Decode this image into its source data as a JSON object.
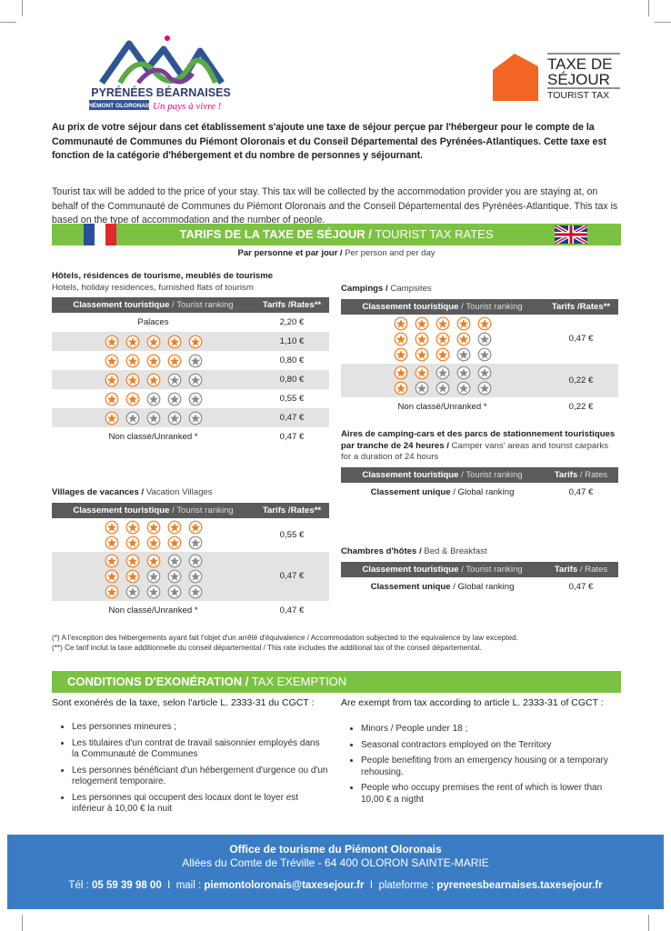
{
  "header": {
    "brand": "PYRÉNÉES BÉARNAISES",
    "brand_sub": "PIÉMONT OLORONAIS",
    "tagline": "Un pays à vivre !",
    "tax_logo_line1": "TAXE DE",
    "tax_logo_line2": "SÉJOUR",
    "tax_logo_line3": "TOURIST TAX"
  },
  "intro_fr": "Au prix de votre séjour dans cet établissement s'ajoute une taxe de séjour perçue par l'hébergeur pour le compte de la Communauté de Communes du Piémont Oloronais et du Conseil Départemental des Pyrénées-Atlantiques. Cette taxe est fonction de la catégorie d'hébergement et du nombre de personnes y séjournant.",
  "intro_en": "Tourist tax will be added to the price of your stay. This tax will be collected by the accommodation provider you are staying at, on behalf of the Communauté de Communes du Piémont Oloronais and the Conseil Départemental des Pyrénées-Atlantique. This tax is based on the type of accommodation and the number of people.",
  "rates": {
    "title_bold": "TARIFS DE LA TAXE DE SÉJOUR /",
    "title": " TOURIST TAX RATES",
    "subtitle_bold": "Par personne et par jour /",
    "subtitle": " Per person and per day"
  },
  "tables": [
    {
      "heading_bold": "Hôtels, résidences de tourisme, meublés de tourisme",
      "heading": "Hotels, holiday residences, furnished flats of tourism",
      "col1_bold": "Classement touristique",
      "col1": " / Tourist ranking",
      "col2_bold": "Tarifs /Rates**",
      "col2": "",
      "rows": [
        {
          "label": "Palaces",
          "rate": "2,20 €"
        },
        {
          "stars": [
            5
          ],
          "rate": "1,10 €"
        },
        {
          "stars": [
            4
          ],
          "rate": "0,80 €"
        },
        {
          "stars": [
            3
          ],
          "rate": "0,80 €"
        },
        {
          "stars": [
            2
          ],
          "rate": "0,55 €"
        },
        {
          "stars": [
            1
          ],
          "rate": "0,47 €"
        },
        {
          "label": "Non classé/Unranked *",
          "rate": "0,47 €"
        }
      ]
    },
    {
      "heading_bold": "Campings /",
      "heading": " Campsites",
      "col1_bold": "Classement touristique",
      "col1": " / Tourist ranking",
      "col2_bold": "Tarifs /Rates**",
      "col2": "",
      "rows": [
        {
          "stars": [
            5,
            4,
            3
          ],
          "rate": "0,47 €"
        },
        {
          "stars": [
            2,
            1
          ],
          "rate": "0,22 €"
        },
        {
          "label": "Non classé/Unranked *",
          "rate": "0,22 €"
        }
      ]
    },
    {
      "heading_bold": "Villages de vacances /",
      "heading": " Vacation Villages",
      "col1_bold": "Classement touristique",
      "col1": " / Tourist ranking",
      "col2_bold": "Tarifs /Rates**",
      "col2": "",
      "rows": [
        {
          "stars": [
            5,
            4
          ],
          "rate": "0,55 €"
        },
        {
          "stars": [
            3,
            2,
            1
          ],
          "rate": "0,47 €"
        },
        {
          "label": "Non classé/Unranked *",
          "rate": "0,47 €"
        }
      ]
    },
    {
      "heading_bold": "Aires de camping-cars et des parcs de stationnement touristiques par tranche de 24 heures /",
      "heading": " Camper vans' areas and tourist carparks for a duration of 24 hours",
      "col1_bold": "Classement touristique",
      "col1": " / Tourist ranking",
      "col2_bold": "Tarifs",
      "col2": " / Rates",
      "rows": [
        {
          "label_bold": "Classement unique",
          "label": " / Global ranking",
          "rate": "0,47 €"
        }
      ]
    },
    {
      "heading_bold": "Chambres d'hôtes /",
      "heading": " Bed & Breakfast",
      "col1_bold": "Classement touristique",
      "col1": " / Tourist ranking",
      "col2_bold": "Tarifs",
      "col2": " / Rates",
      "rows": [
        {
          "label_bold": "Classement unique",
          "label": " / Global ranking",
          "rate": "0,47 €"
        }
      ]
    }
  ],
  "footnotes": [
    "(*) A l'exception des hébergements ayant fait l'objet d'un arrêté d'équivalence / Accommodation subjected to the equivalence by law excepted.",
    "(**) Ce tarif inclut la taxe additionnelle du conseil départemental / This rate includes the additional tax of the conseil départemental."
  ],
  "exemption": {
    "title_bold": "CONDITIONS D'EXONÉRATION /",
    "title": " TAX EXEMPTION",
    "fr_intro": "Sont exonérés de la taxe, selon l'article L. 2333-31 du CGCT :",
    "fr_items": [
      "Les personnes mineures ;",
      "Les titulaires d'un contrat de travail saisonnier employés dans la Communauté de Communes",
      "Les personnes bénéficiant d'un hébergement d'urgence ou d'un relogement temporaire.",
      "Les personnes qui occupent des locaux dont le loyer est inférieur à 10,00 € la nuit"
    ],
    "en_intro": "Are exempt from tax according to article L. 2333-31 of CGCT :",
    "en_items": [
      "Minors / People under 18 ;",
      "Seasonal contractors employed on the Territory",
      "People benefiting from an emergency housing or a temporary rehousing.",
      "People who occupy premises the rent of which is lower than 10,00 € a nigtht"
    ]
  },
  "footer": {
    "office": "Office de tourisme du Piémont Oloronais",
    "address": "Allées du Comte de Tréville - 64 400 OLORON SAINTE-MARIE",
    "tel_label": "Tél : ",
    "tel": "05 59 39 98 00",
    "mail_label": "  I  mail : ",
    "mail": "piemontoloronais@taxesejour.fr",
    "platform_label": "  I  plateforme : ",
    "platform": "pyreneesbearnaises.taxesejour.fr"
  }
}
